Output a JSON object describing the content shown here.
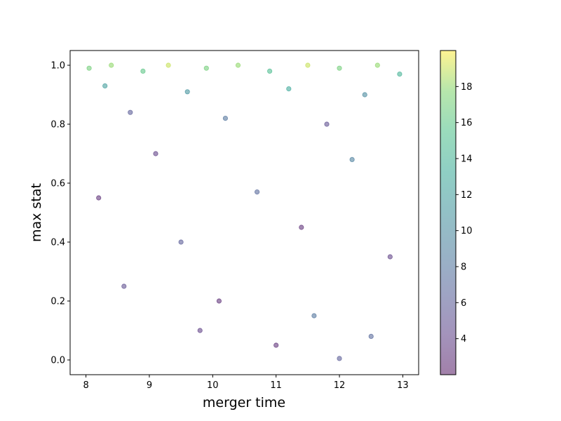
{
  "chart_data": {
    "type": "scatter",
    "title": "",
    "xlabel": "merger time",
    "ylabel": "max stat",
    "xlim": [
      7.75,
      13.25
    ],
    "ylim": [
      -0.05,
      1.05
    ],
    "xticks": [
      8,
      9,
      10,
      11,
      12,
      13
    ],
    "yticks": [
      0.0,
      0.2,
      0.4,
      0.6,
      0.8,
      1.0
    ],
    "grid": false,
    "legend": "none",
    "colorbar": {
      "colormap": "viridis",
      "alpha": 0.5,
      "range": [
        2,
        20
      ],
      "ticks": [
        4,
        6,
        8,
        10,
        12,
        14,
        16,
        18
      ]
    },
    "points": [
      {
        "x": 8.05,
        "y": 0.99,
        "c": 17
      },
      {
        "x": 8.4,
        "y": 1.0,
        "c": 18
      },
      {
        "x": 8.9,
        "y": 0.98,
        "c": 16
      },
      {
        "x": 9.3,
        "y": 1.0,
        "c": 19
      },
      {
        "x": 9.9,
        "y": 0.99,
        "c": 17
      },
      {
        "x": 10.4,
        "y": 1.0,
        "c": 18
      },
      {
        "x": 10.9,
        "y": 0.98,
        "c": 15
      },
      {
        "x": 11.5,
        "y": 1.0,
        "c": 19
      },
      {
        "x": 12.0,
        "y": 0.99,
        "c": 17
      },
      {
        "x": 12.6,
        "y": 1.0,
        "c": 18
      },
      {
        "x": 12.95,
        "y": 0.97,
        "c": 14
      },
      {
        "x": 8.3,
        "y": 0.93,
        "c": 12
      },
      {
        "x": 9.6,
        "y": 0.91,
        "c": 11
      },
      {
        "x": 11.2,
        "y": 0.92,
        "c": 13
      },
      {
        "x": 12.4,
        "y": 0.9,
        "c": 10
      },
      {
        "x": 8.7,
        "y": 0.84,
        "c": 6
      },
      {
        "x": 10.2,
        "y": 0.82,
        "c": 8
      },
      {
        "x": 11.8,
        "y": 0.8,
        "c": 5
      },
      {
        "x": 9.1,
        "y": 0.7,
        "c": 4
      },
      {
        "x": 12.2,
        "y": 0.68,
        "c": 9
      },
      {
        "x": 8.2,
        "y": 0.55,
        "c": 3
      },
      {
        "x": 10.7,
        "y": 0.57,
        "c": 7
      },
      {
        "x": 11.4,
        "y": 0.45,
        "c": 3
      },
      {
        "x": 9.5,
        "y": 0.4,
        "c": 6
      },
      {
        "x": 12.8,
        "y": 0.35,
        "c": 4
      },
      {
        "x": 8.6,
        "y": 0.25,
        "c": 5
      },
      {
        "x": 10.1,
        "y": 0.2,
        "c": 3
      },
      {
        "x": 11.6,
        "y": 0.15,
        "c": 8
      },
      {
        "x": 9.8,
        "y": 0.1,
        "c": 4
      },
      {
        "x": 12.5,
        "y": 0.08,
        "c": 7
      },
      {
        "x": 11.0,
        "y": 0.05,
        "c": 3
      },
      {
        "x": 12.0,
        "y": 0.005,
        "c": 6
      }
    ]
  }
}
